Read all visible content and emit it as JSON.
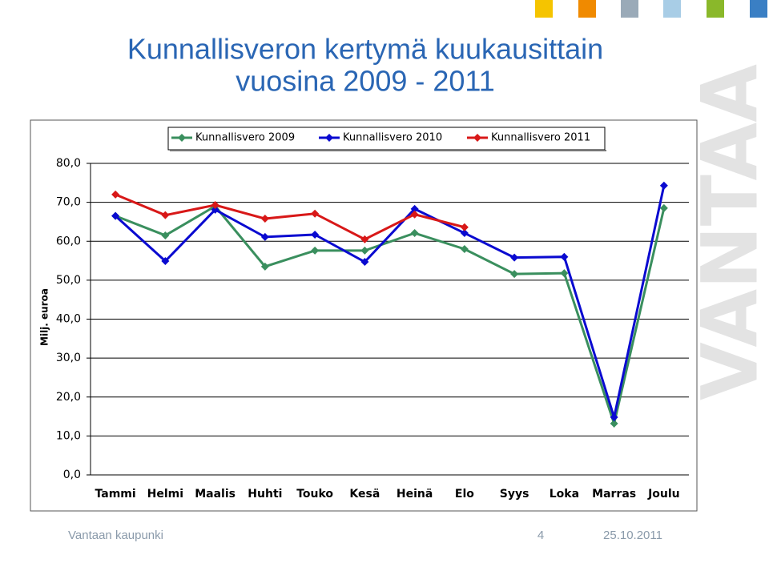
{
  "chart_data": {
    "type": "line",
    "title": [
      "Kunnallisveron kertymä kuukausittain",
      "vuosina 2009 - 2011"
    ],
    "y_label": "Milj. euroa",
    "categories": [
      "Tammi",
      "Helmi",
      "Maalis",
      "Huhti",
      "Touko",
      "Kesä",
      "Heinä",
      "Elo",
      "Syys",
      "Loka",
      "Marras",
      "Joulu"
    ],
    "series": [
      {
        "name": "Kunnallisvero 2009",
        "color": "#3a8f5e",
        "values": [
          66.5,
          61.5,
          69,
          53.5,
          57.6,
          57.6,
          62.1,
          58,
          51.6,
          51.8,
          13.2,
          68.5
        ]
      },
      {
        "name": "Kunnallisvero 2010",
        "color": "#0a0ad0",
        "values": [
          66.5,
          54.9,
          68.1,
          61.1,
          61.7,
          54.7,
          68.3,
          62.1,
          55.8,
          56,
          14.8,
          74.3
        ]
      },
      {
        "name": "Kunnallisvero 2011",
        "color": "#d81818",
        "values": [
          72,
          66.7,
          69.3,
          65.8,
          67.1,
          60.5,
          66.9,
          63.6,
          null,
          null,
          null,
          null
        ]
      }
    ],
    "ylim": [
      0,
      80
    ],
    "yticks": [
      {
        "value": 0,
        "label": "0,0"
      },
      {
        "value": 10,
        "label": "10,0"
      },
      {
        "value": 20,
        "label": "20,0"
      },
      {
        "value": 30,
        "label": "30,0"
      },
      {
        "value": 40,
        "label": "40,0"
      },
      {
        "value": 50,
        "label": "50,0"
      },
      {
        "value": 60,
        "label": "60,0"
      },
      {
        "value": 70,
        "label": "70,0"
      },
      {
        "value": 80,
        "label": "80,0"
      }
    ],
    "grid": true,
    "legend": "top"
  },
  "footer": {
    "organization": "Vantaan kaupunki",
    "page": "4",
    "date": "25.10.2011"
  },
  "logo": "VANTAA"
}
